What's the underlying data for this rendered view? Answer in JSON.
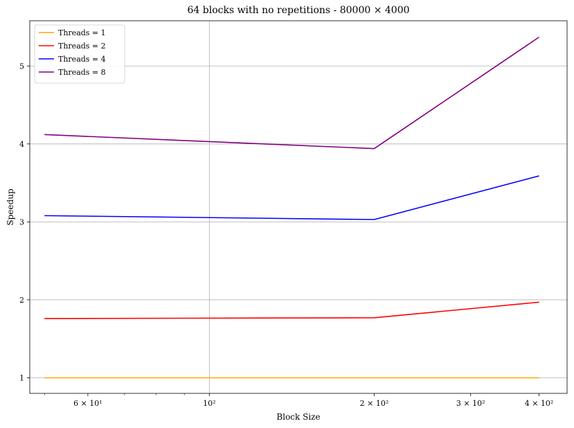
{
  "chart_data": {
    "type": "line",
    "title": "64 blocks with no repetitions - 80000 × 4000",
    "xlabel": "Block Size",
    "ylabel": "Speedup",
    "xscale": "log",
    "xlim": [
      47,
      450
    ],
    "ylim": [
      0.8,
      5.58
    ],
    "grid": true,
    "legend_position": "top-left",
    "x": [
      50,
      200,
      400
    ],
    "x_ticks": [
      {
        "value": 60,
        "label": "6 × 10¹"
      },
      {
        "value": 100,
        "label": "10²"
      },
      {
        "value": 200,
        "label": "2 × 10²"
      },
      {
        "value": 300,
        "label": "3 × 10²"
      },
      {
        "value": 400,
        "label": "4 × 10²"
      }
    ],
    "y_ticks": [
      {
        "value": 1,
        "label": "1"
      },
      {
        "value": 2,
        "label": "2"
      },
      {
        "value": 3,
        "label": "3"
      },
      {
        "value": 4,
        "label": "4"
      },
      {
        "value": 5,
        "label": "5"
      }
    ],
    "series": [
      {
        "name": "Threads = 1",
        "color": "#ffa500",
        "values": [
          1.0,
          1.0,
          1.0
        ]
      },
      {
        "name": "Threads = 2",
        "color": "#ff0000",
        "values": [
          1.76,
          1.77,
          1.97
        ]
      },
      {
        "name": "Threads = 4",
        "color": "#0000ff",
        "values": [
          3.08,
          3.03,
          3.59
        ]
      },
      {
        "name": "Threads = 8",
        "color": "#800080",
        "values": [
          4.12,
          3.94,
          5.37
        ]
      }
    ]
  }
}
